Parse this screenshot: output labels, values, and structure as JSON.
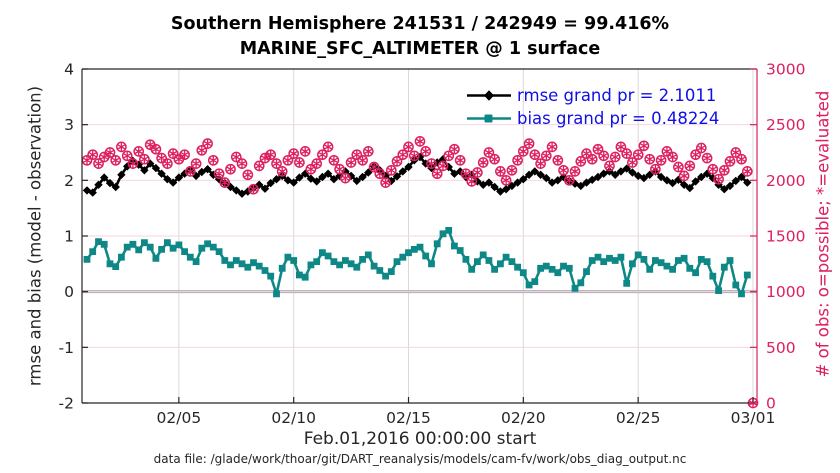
{
  "title": {
    "line1": "Southern Hemisphere 241531 / 242949 = 99.416%",
    "line2": "MARINE_SFC_ALTIMETER @ 1 surface"
  },
  "axes": {
    "left_label": "rmse and bias (model - observation)",
    "right_label": "# of obs: o=possible; *=evaluated"
  },
  "legend": {
    "items": [
      {
        "label": "rmse grand pr = 2.1011",
        "series": "rmse",
        "marker": "diamond",
        "color": "#000000"
      },
      {
        "label": "bias grand pr = 0.48224",
        "series": "bias",
        "marker": "square",
        "color": "#0e8787"
      }
    ],
    "text_color": "#0f0fe6"
  },
  "footer": {
    "xlabel": "Feb.01,2016 00:00:00 start",
    "datafile": "data file: /glade/work/thoar/git/DART_reanalysis/models/cam-fv/work/obs_diag_output.nc"
  },
  "colors": {
    "rmse": "#000000",
    "bias": "#0e8787",
    "obs": "#dc2060",
    "legend_text": "#0f0fe6",
    "axis": "#262626",
    "grid_vertical": "#d9d9d9",
    "grid_horizontal": "#f5d4e2",
    "zero_line": "#b3adb3",
    "background": "#ffffff"
  },
  "chart_data": {
    "type": "line",
    "title": "Southern Hemisphere 241531 / 242949 = 99.416% | MARINE_SFC_ALTIMETER @ 1 surface",
    "xlabel": "Feb.01,2016 00:00:00 start",
    "ylabel_left": "rmse and bias (model - observation)",
    "ylabel_right": "# of obs: o=possible; *=evaluated",
    "x_start": "2016-02-01 00:00:00",
    "x_step_hours": 6,
    "x_span_days": 29,
    "x_ticks": [
      "02/05",
      "02/10",
      "02/15",
      "02/20",
      "02/25",
      "03/01"
    ],
    "x_tick_days": [
      4,
      9,
      14,
      19,
      24,
      29
    ],
    "ylim_left": [
      -2,
      4
    ],
    "yticks_left": [
      -2,
      -1,
      0,
      1,
      2,
      3,
      4
    ],
    "ylim_right": [
      0,
      3000
    ],
    "yticks_right": [
      0,
      500,
      1000,
      1500,
      2000,
      2500,
      3000
    ],
    "grid": true,
    "zero_reference_line": 0,
    "legend_position": "upper right, no box",
    "series": [
      {
        "name": "rmse",
        "axis": "left",
        "marker": "diamond",
        "grand_value": 2.1011,
        "values": [
          1.82,
          1.78,
          1.92,
          2.05,
          1.95,
          1.88,
          2.1,
          2.25,
          2.35,
          2.28,
          2.18,
          2.3,
          2.22,
          2.12,
          2.02,
          1.96,
          2.05,
          2.12,
          2.18,
          2.08,
          2.15,
          2.2,
          2.1,
          2.02,
          1.95,
          1.88,
          1.82,
          1.76,
          1.8,
          1.86,
          1.92,
          1.85,
          1.95,
          2.02,
          2.08,
          2.0,
          1.96,
          2.05,
          2.12,
          2.03,
          1.98,
          2.06,
          2.12,
          2.02,
          2.08,
          2.16,
          2.08,
          1.99,
          2.06,
          2.14,
          2.25,
          2.18,
          2.08,
          1.99,
          2.07,
          2.16,
          2.24,
          2.36,
          2.42,
          2.3,
          2.22,
          2.32,
          2.38,
          2.24,
          2.12,
          2.16,
          2.06,
          2.1,
          1.98,
          1.92,
          1.96,
          1.88,
          1.8,
          1.84,
          1.9,
          1.96,
          2.02,
          2.1,
          2.16,
          2.1,
          2.04,
          1.96,
          2.0,
          2.06,
          1.99,
          1.94,
          1.9,
          1.96,
          2.01,
          2.06,
          2.12,
          2.16,
          2.1,
          2.16,
          2.21,
          2.14,
          2.08,
          2.04,
          2.1,
          2.16,
          2.06,
          2.0,
          1.95,
          2.01,
          1.92,
          1.86,
          1.98,
          2.06,
          2.12,
          2.04,
          1.92,
          1.84,
          1.9,
          1.99,
          2.06,
          1.96
        ]
      },
      {
        "name": "bias",
        "axis": "left",
        "marker": "square",
        "grand_value": 0.48224,
        "values": [
          0.58,
          0.72,
          0.9,
          0.85,
          0.5,
          0.45,
          0.62,
          0.8,
          0.85,
          0.75,
          0.88,
          0.8,
          0.6,
          0.76,
          0.88,
          0.78,
          0.84,
          0.72,
          0.62,
          0.54,
          0.78,
          0.86,
          0.8,
          0.72,
          0.56,
          0.48,
          0.56,
          0.5,
          0.44,
          0.52,
          0.46,
          0.38,
          0.28,
          -0.04,
          0.42,
          0.62,
          0.56,
          0.3,
          0.26,
          0.48,
          0.54,
          0.7,
          0.64,
          0.54,
          0.48,
          0.56,
          0.5,
          0.44,
          0.58,
          0.66,
          0.46,
          0.38,
          0.28,
          0.36,
          0.54,
          0.62,
          0.7,
          0.76,
          0.8,
          0.64,
          0.5,
          0.86,
          1.04,
          1.1,
          0.82,
          0.74,
          0.58,
          0.4,
          0.54,
          0.66,
          0.56,
          0.4,
          0.5,
          0.62,
          0.54,
          0.44,
          0.34,
          0.12,
          0.18,
          0.42,
          0.46,
          0.4,
          0.34,
          0.46,
          0.42,
          0.06,
          0.16,
          0.36,
          0.56,
          0.62,
          0.54,
          0.6,
          0.56,
          0.62,
          0.15,
          0.5,
          0.66,
          0.58,
          0.4,
          0.56,
          0.52,
          0.46,
          0.4,
          0.56,
          0.6,
          0.42,
          0.34,
          0.58,
          0.54,
          0.28,
          0.02,
          0.44,
          0.56,
          0.12,
          -0.04,
          0.3
        ]
      },
      {
        "name": "N_possible",
        "axis": "right",
        "marker": "circle",
        "total": 242949,
        "values": [
          2180,
          2230,
          2150,
          2210,
          2250,
          2180,
          2300,
          2220,
          2150,
          2260,
          2190,
          2320,
          2280,
          2200,
          2150,
          2240,
          2190,
          2230,
          2080,
          2150,
          2270,
          2330,
          2180,
          2060,
          1980,
          2100,
          2210,
          2150,
          2050,
          1920,
          2130,
          2200,
          2230,
          2150,
          2080,
          2180,
          2240,
          2160,
          2260,
          2100,
          2150,
          2230,
          2300,
          2180,
          2100,
          2020,
          2160,
          2230,
          2180,
          2260,
          2120,
          2060,
          1980,
          2090,
          2170,
          2230,
          2300,
          2220,
          2350,
          2260,
          2150,
          2060,
          2130,
          2220,
          2280,
          2180,
          2060,
          1990,
          2070,
          2160,
          2250,
          2190,
          2080,
          2000,
          2090,
          2180,
          2260,
          2330,
          2230,
          2150,
          2220,
          2300,
          2180,
          2090,
          2000,
          2080,
          2170,
          2240,
          2190,
          2280,
          2220,
          2130,
          2210,
          2300,
          2240,
          2160,
          2230,
          2310,
          2190,
          2100,
          2180,
          2260,
          2210,
          2120,
          2040,
          2130,
          2230,
          2290,
          2200,
          2100,
          2010,
          2090,
          2170,
          2250,
          2190,
          2080,
          0
        ]
      },
      {
        "name": "N_evaluated",
        "axis": "right",
        "marker": "asterisk",
        "total": 241531,
        "note": "visually coincident with N_possible (99.416% evaluated)",
        "values": "same_as_possible"
      }
    ]
  }
}
